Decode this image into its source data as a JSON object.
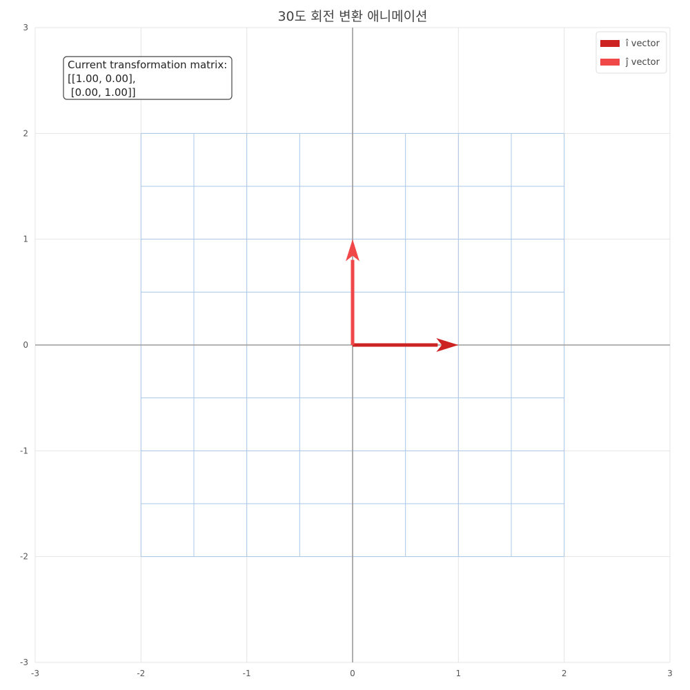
{
  "chart_data": {
    "type": "vector",
    "title": "30도 회전 변환 애니메이션",
    "xlim": [
      -3,
      3
    ],
    "ylim": [
      -3,
      3
    ],
    "x_ticks": [
      "-3",
      "-2",
      "-1",
      "0",
      "1",
      "2",
      "3"
    ],
    "y_ticks": [
      "-3",
      "-2",
      "-1",
      "0",
      "1",
      "2",
      "3"
    ],
    "grid": true,
    "transformed_grid": {
      "range": [
        -2,
        2
      ],
      "step": 0.5,
      "color": "#a8c8e8"
    },
    "vectors": [
      {
        "name": "î vector",
        "origin": [
          0,
          0
        ],
        "end": [
          1,
          0
        ],
        "color": "#cc2222"
      },
      {
        "name": "ĵ vector",
        "origin": [
          0,
          0
        ],
        "end": [
          0,
          1
        ],
        "color": "#f04848"
      }
    ],
    "annotation": {
      "lines": [
        "Current transformation matrix:",
        "[[1.00, 0.00],",
        " [0.00, 1.00]]"
      ],
      "position": "top-left"
    },
    "legend": {
      "position": "top-right"
    }
  }
}
